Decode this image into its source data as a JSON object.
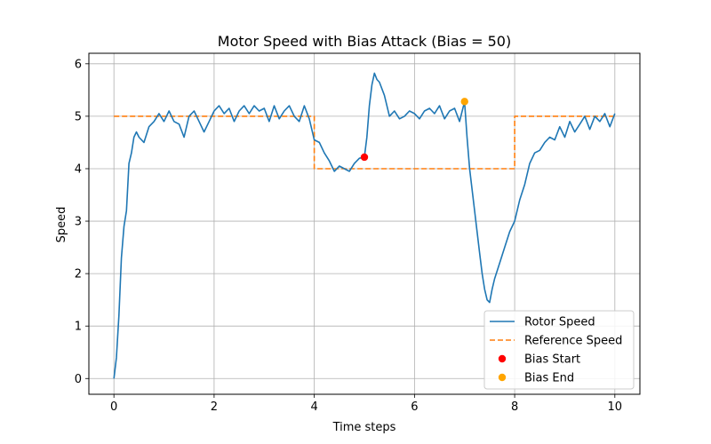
{
  "chart_data": {
    "type": "line",
    "title": "Motor Speed with Bias Attack (Bias = 50)",
    "xlabel": "Time steps",
    "ylabel": "Speed",
    "xlim": [
      -0.5,
      10.5
    ],
    "ylim": [
      -0.3,
      6.2
    ],
    "xticks": [
      0,
      2,
      4,
      6,
      8,
      10
    ],
    "yticks": [
      0,
      1,
      2,
      3,
      4,
      5,
      6
    ],
    "grid": true,
    "legend_position": "lower-right",
    "series": [
      {
        "name": "Rotor Speed",
        "color": "#1f77b4",
        "style": "solid",
        "x": [
          0,
          0.05,
          0.1,
          0.15,
          0.2,
          0.25,
          0.3,
          0.35,
          0.4,
          0.45,
          0.5,
          0.6,
          0.7,
          0.8,
          0.9,
          1.0,
          1.1,
          1.2,
          1.3,
          1.4,
          1.5,
          1.6,
          1.7,
          1.8,
          1.9,
          2.0,
          2.1,
          2.2,
          2.3,
          2.4,
          2.5,
          2.6,
          2.7,
          2.8,
          2.9,
          3.0,
          3.1,
          3.2,
          3.3,
          3.4,
          3.5,
          3.6,
          3.7,
          3.8,
          3.9,
          4.0,
          4.1,
          4.2,
          4.3,
          4.4,
          4.5,
          4.6,
          4.7,
          4.8,
          4.9,
          5.0,
          5.05,
          5.1,
          5.15,
          5.2,
          5.25,
          5.3,
          5.4,
          5.5,
          5.6,
          5.7,
          5.8,
          5.9,
          6.0,
          6.1,
          6.2,
          6.3,
          6.4,
          6.5,
          6.6,
          6.7,
          6.8,
          6.9,
          7.0,
          7.05,
          7.1,
          7.15,
          7.2,
          7.25,
          7.3,
          7.35,
          7.4,
          7.45,
          7.5,
          7.55,
          7.6,
          7.7,
          7.8,
          7.9,
          8.0,
          8.1,
          8.2,
          8.3,
          8.4,
          8.5,
          8.6,
          8.7,
          8.8,
          8.9,
          9.0,
          9.1,
          9.2,
          9.3,
          9.4,
          9.5,
          9.6,
          9.7,
          9.8,
          9.9,
          10.0
        ],
        "y": [
          0,
          0.4,
          1.2,
          2.3,
          2.9,
          3.2,
          4.1,
          4.3,
          4.6,
          4.7,
          4.6,
          4.5,
          4.8,
          4.9,
          5.05,
          4.9,
          5.1,
          4.9,
          4.85,
          4.6,
          5.0,
          5.1,
          4.9,
          4.7,
          4.9,
          5.1,
          5.2,
          5.05,
          5.15,
          4.9,
          5.1,
          5.2,
          5.05,
          5.2,
          5.1,
          5.15,
          4.9,
          5.2,
          4.95,
          5.1,
          5.2,
          5.0,
          4.9,
          5.2,
          4.95,
          4.55,
          4.5,
          4.3,
          4.15,
          3.95,
          4.05,
          4.0,
          3.95,
          4.1,
          4.2,
          4.22,
          4.6,
          5.2,
          5.6,
          5.82,
          5.7,
          5.65,
          5.4,
          5.0,
          5.1,
          4.95,
          5.0,
          5.1,
          5.05,
          4.95,
          5.1,
          5.15,
          5.05,
          5.2,
          4.95,
          5.1,
          5.15,
          4.9,
          5.28,
          4.6,
          4.0,
          3.6,
          3.2,
          2.8,
          2.4,
          2.0,
          1.7,
          1.5,
          1.45,
          1.7,
          1.9,
          2.2,
          2.5,
          2.8,
          3.0,
          3.4,
          3.7,
          4.1,
          4.3,
          4.35,
          4.5,
          4.6,
          4.55,
          4.8,
          4.6,
          4.9,
          4.7,
          4.85,
          5.0,
          4.75,
          5.0,
          4.9,
          5.05,
          4.8,
          5.05
        ]
      },
      {
        "name": "Reference Speed",
        "color": "#ff7f0e",
        "style": "dashed",
        "x": [
          0,
          4,
          4,
          8,
          8,
          10
        ],
        "y": [
          5,
          5,
          4,
          4,
          5,
          5
        ]
      }
    ],
    "markers": [
      {
        "name": "Bias Start",
        "color": "#ff0000",
        "x": 5.0,
        "y": 4.22
      },
      {
        "name": "Bias End",
        "color": "#ffa500",
        "x": 7.0,
        "y": 5.28
      }
    ]
  }
}
